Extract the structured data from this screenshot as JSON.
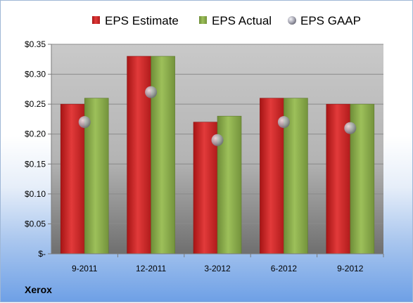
{
  "chart_data": {
    "type": "bar",
    "categories": [
      "9-2011",
      "12-2011",
      "3-2012",
      "6-2012",
      "9-2012"
    ],
    "series": [
      {
        "name": "EPS Estimate",
        "kind": "bar",
        "color": "#d42a2a",
        "values": [
          0.25,
          0.33,
          0.22,
          0.26,
          0.25
        ]
      },
      {
        "name": "EPS Actual",
        "kind": "bar",
        "color": "#8db04e",
        "values": [
          0.26,
          0.33,
          0.23,
          0.26,
          0.25
        ]
      },
      {
        "name": "EPS GAAP",
        "kind": "marker",
        "color": "#b9b9c3",
        "values": [
          0.22,
          0.27,
          0.19,
          0.22,
          0.21
        ]
      }
    ],
    "ylim": [
      0,
      0.35
    ],
    "yticks": [
      0,
      0.05,
      0.1,
      0.15,
      0.2,
      0.25,
      0.3,
      0.35
    ],
    "ytick_labels": [
      "$-",
      "$0.05",
      "$0.10",
      "$0.15",
      "$0.20",
      "$0.25",
      "$0.30",
      "$0.35"
    ],
    "grid": true,
    "legend_position": "top",
    "company": "Xerox"
  }
}
